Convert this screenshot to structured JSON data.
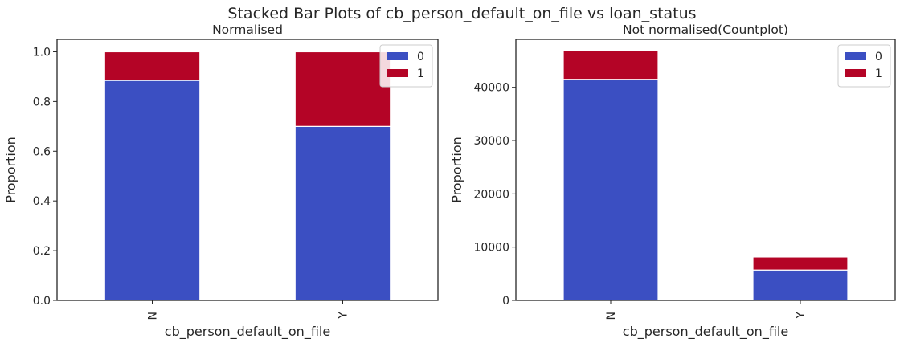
{
  "figure": {
    "suptitle": "Stacked Bar Plots of cb_person_default_on_file vs loan_status"
  },
  "chart_data": [
    {
      "type": "bar",
      "stacked": true,
      "title": "Normalised",
      "xlabel": "cb_person_default_on_file",
      "ylabel": "Proportion",
      "categories": [
        "N",
        "Y"
      ],
      "series": [
        {
          "name": "0",
          "values": [
            0.885,
            0.7
          ],
          "color": "#3b4fc2"
        },
        {
          "name": "1",
          "values": [
            0.115,
            0.3
          ],
          "color": "#b40426"
        }
      ],
      "ylim": [
        0,
        1.05
      ],
      "yticks": [
        0.0,
        0.2,
        0.4,
        0.6,
        0.8,
        1.0
      ],
      "ytick_labels": [
        "0.0",
        "0.2",
        "0.4",
        "0.6",
        "0.8",
        "1.0"
      ],
      "grid": false,
      "legend": "top-right"
    },
    {
      "type": "bar",
      "stacked": true,
      "title": "Not normalised(Countplot)",
      "xlabel": "cb_person_default_on_file",
      "ylabel": "Proportion",
      "categories": [
        "N",
        "Y"
      ],
      "series": [
        {
          "name": "0",
          "values": [
            41500,
            5700
          ],
          "color": "#3b4fc2"
        },
        {
          "name": "1",
          "values": [
            5400,
            2450
          ],
          "color": "#b40426"
        }
      ],
      "ylim": [
        0,
        49000
      ],
      "yticks": [
        0,
        10000,
        20000,
        30000,
        40000
      ],
      "ytick_labels": [
        "0",
        "10000",
        "20000",
        "30000",
        "40000"
      ],
      "grid": false,
      "legend": "top-right"
    }
  ]
}
